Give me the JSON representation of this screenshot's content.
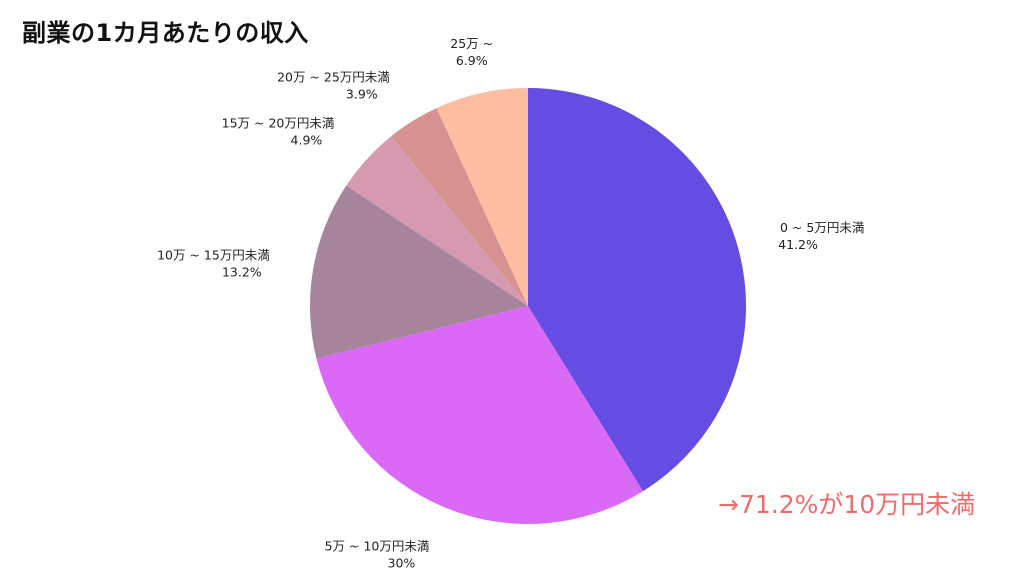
{
  "title": "副業の1カ月あたりの収入",
  "callout": "→71.2%が10万円未満",
  "chart_data": {
    "type": "pie",
    "title": "副業の1カ月あたりの収入",
    "start_angle_deg": 90,
    "direction": "clockwise",
    "slices": [
      {
        "label": "0 ~ 5万円未満",
        "value": 41.2,
        "value_label": "41.2%",
        "color": "#654CE3"
      },
      {
        "label": "5万 ~ 10万円未満",
        "value": 30,
        "value_label": "30%",
        "color": "#DA6AF5"
      },
      {
        "label": "10万 ~ 15万円未満",
        "value": 13.2,
        "value_label": "13.2%",
        "color": "#A6859C"
      },
      {
        "label": "15万 ~ 20万円未満",
        "value": 4.9,
        "value_label": "4.9%",
        "color": "#D69AB0"
      },
      {
        "label": "20万 ~ 25万円未満",
        "value": 3.9,
        "value_label": "3.9%",
        "color": "#D59291"
      },
      {
        "label": "25万 ~",
        "value": 6.9,
        "value_label": "6.9%",
        "color": "#FDBDA1"
      }
    ]
  }
}
